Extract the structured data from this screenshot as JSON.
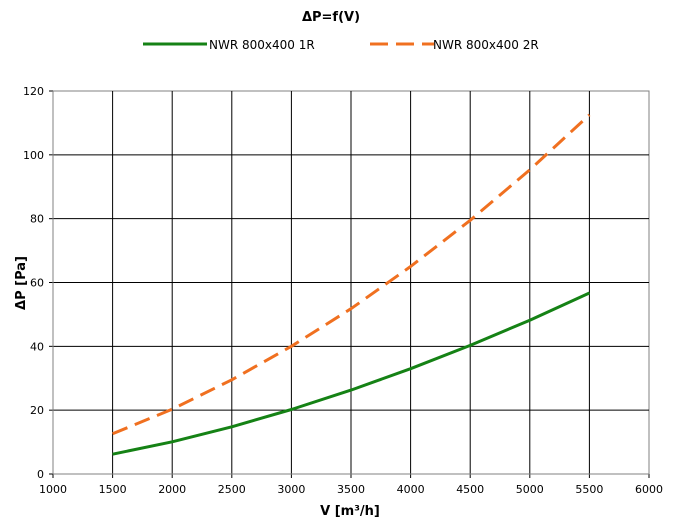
{
  "chart_data": {
    "type": "line",
    "title": "ΔP=f(V)",
    "xlabel": "V [m³/h]",
    "ylabel": "ΔP [Pa]",
    "xlim": [
      1000,
      6000
    ],
    "ylim": [
      0,
      120
    ],
    "xticks": [
      1000,
      1500,
      2000,
      2500,
      3000,
      3500,
      4000,
      4500,
      5000,
      5500,
      6000
    ],
    "yticks": [
      0,
      20,
      40,
      60,
      80,
      100,
      120
    ],
    "grid": true,
    "legend_position": "top-center",
    "series": [
      {
        "name": "NWR 800x400 1R",
        "color": "#158215",
        "dash": "solid",
        "x": [
          1500,
          2000,
          2500,
          3000,
          3500,
          4000,
          4500,
          5000,
          5500
        ],
        "y": [
          6.2,
          10.1,
          14.8,
          20.2,
          26.3,
          33.0,
          40.3,
          48.2,
          56.7
        ]
      },
      {
        "name": "NWR 800x400 2R",
        "color": "#f07020",
        "dash": "dashed",
        "x": [
          1500,
          2000,
          2500,
          3000,
          3500,
          4000,
          4500,
          5000,
          5500
        ],
        "y": [
          12.6,
          20.3,
          29.5,
          40.0,
          51.8,
          65.0,
          79.5,
          95.3,
          112.5
        ]
      }
    ]
  }
}
